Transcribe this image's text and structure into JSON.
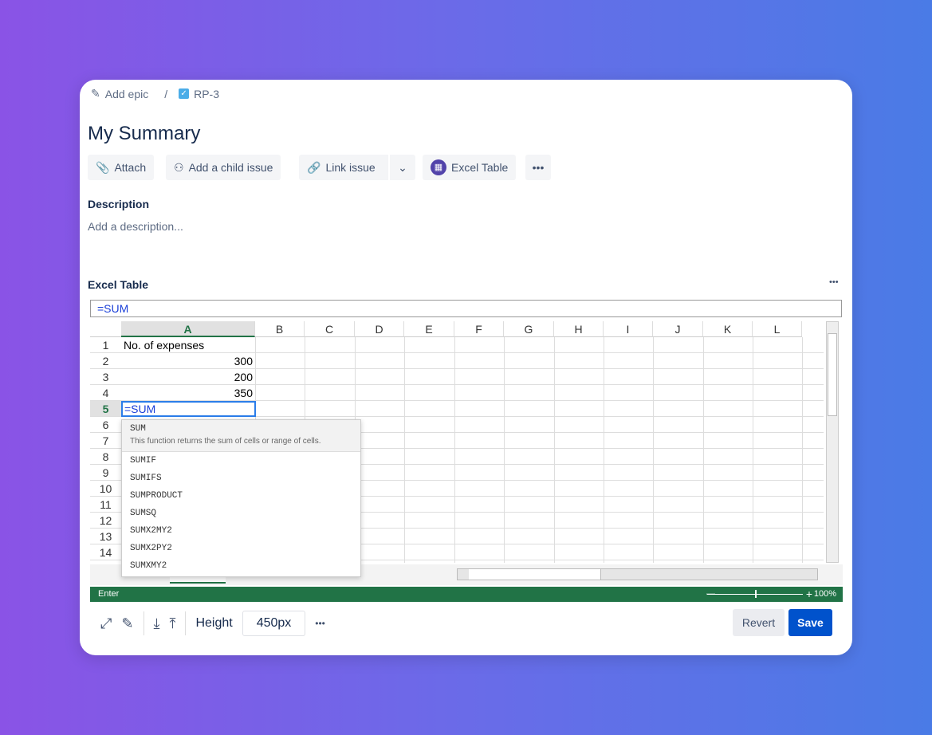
{
  "breadcrumb": {
    "epic": "Add epic",
    "sep": "/",
    "issue": "RP-3"
  },
  "title": "My Summary",
  "toolbar": {
    "attach": "Attach",
    "child": "Add a child issue",
    "link": "Link issue",
    "excel": "Excel Table",
    "more": "•••"
  },
  "description": {
    "label": "Description",
    "placeholder": "Add a description..."
  },
  "excel": {
    "label": "Excel Table",
    "more": "•••",
    "formula": "=SUM",
    "columns": [
      "A",
      "B",
      "C",
      "D",
      "E",
      "F",
      "G",
      "H",
      "I",
      "J",
      "K",
      "L"
    ],
    "rows": [
      "1",
      "2",
      "3",
      "4",
      "5",
      "6",
      "7",
      "8",
      "9",
      "10",
      "11",
      "12",
      "13",
      "14"
    ],
    "cells": {
      "a1": "No. of expenses",
      "a2": "300",
      "a3": "200",
      "a4": "350",
      "a5": "=SUM"
    },
    "autocomplete": {
      "first": "SUM",
      "first_desc": "This function returns the sum of cells or range of cells.",
      "items": [
        "SUMIF",
        "SUMIFS",
        "SUMPRODUCT",
        "SUMSQ",
        "SUMX2MY2",
        "SUMX2PY2",
        "SUMXMY2"
      ]
    },
    "status": "Enter",
    "zoom": "100%"
  },
  "bottom": {
    "height_label": "Height",
    "height_value": "450px",
    "more": "•••",
    "revert": "Revert",
    "save": "Save"
  },
  "colors": {
    "accent": "#0052cc",
    "excel_green": "#217346"
  }
}
